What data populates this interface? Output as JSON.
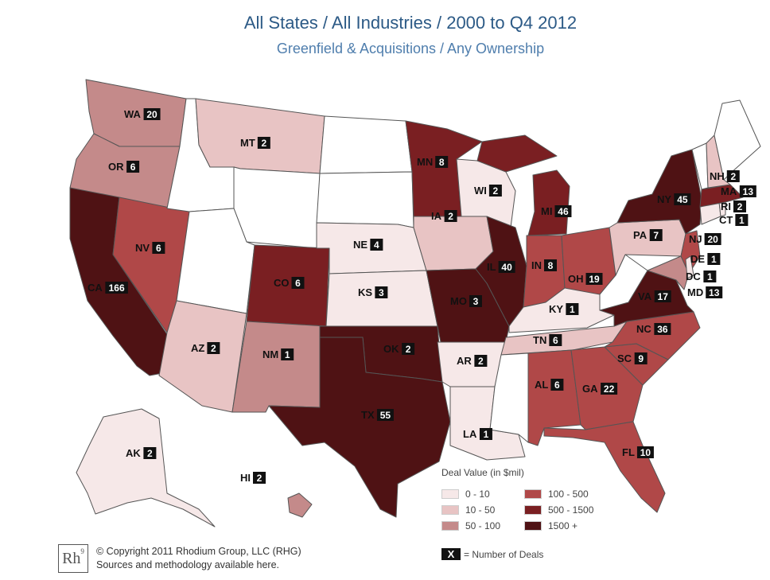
{
  "header": {
    "title": "All States / All Industries / 2000 to Q4 2012",
    "subtitle": "Greenfield & Acquisitions / Any Ownership"
  },
  "colors": {
    "none": "#ffffff",
    "0-10": "#f6e8e8",
    "10-50": "#e8c4c4",
    "50-100": "#c48a8a",
    "100-500": "#b04848",
    "500-1500": "#7a1f22",
    "1500+": "#4f1214"
  },
  "legend": {
    "title": "Deal Value (in $mil)",
    "items": [
      {
        "label": "0 - 10",
        "color": "#f6e8e8"
      },
      {
        "label": "10 - 50",
        "color": "#e8c4c4"
      },
      {
        "label": "50 - 100",
        "color": "#c48a8a"
      },
      {
        "label": "100 - 500",
        "color": "#b04848"
      },
      {
        "label": "500 - 1500",
        "color": "#7a1f22"
      },
      {
        "label": "1500 +",
        "color": "#4f1214"
      }
    ],
    "deals_key_symbol": "X",
    "deals_key_label": "= Number of Deals"
  },
  "states": {
    "WA": {
      "deals": 20,
      "bin": "50-100"
    },
    "OR": {
      "deals": 6,
      "bin": "50-100"
    },
    "CA": {
      "deals": 166,
      "bin": "1500+"
    },
    "NV": {
      "deals": 6,
      "bin": "100-500"
    },
    "ID": {
      "bin": "none"
    },
    "MT": {
      "deals": 2,
      "bin": "10-50"
    },
    "WY": {
      "bin": "none"
    },
    "UT": {
      "bin": "none"
    },
    "AZ": {
      "deals": 2,
      "bin": "10-50"
    },
    "CO": {
      "deals": 6,
      "bin": "500-1500"
    },
    "NM": {
      "deals": 1,
      "bin": "50-100"
    },
    "ND": {
      "bin": "none"
    },
    "SD": {
      "bin": "none"
    },
    "NE": {
      "deals": 4,
      "bin": "0-10"
    },
    "KS": {
      "deals": 3,
      "bin": "0-10"
    },
    "OK": {
      "deals": 2,
      "bin": "1500+"
    },
    "TX": {
      "deals": 55,
      "bin": "1500+"
    },
    "MN": {
      "deals": 8,
      "bin": "500-1500"
    },
    "IA": {
      "deals": 2,
      "bin": "10-50"
    },
    "MO": {
      "deals": 3,
      "bin": "1500+"
    },
    "AR": {
      "deals": 2,
      "bin": "0-10"
    },
    "LA": {
      "deals": 1,
      "bin": "0-10"
    },
    "WI": {
      "deals": 2,
      "bin": "0-10"
    },
    "IL": {
      "deals": 40,
      "bin": "1500+"
    },
    "MI": {
      "deals": 46,
      "bin": "500-1500"
    },
    "IN": {
      "deals": 8,
      "bin": "100-500"
    },
    "OH": {
      "deals": 19,
      "bin": "100-500"
    },
    "KY": {
      "deals": 1,
      "bin": "0-10"
    },
    "TN": {
      "deals": 6,
      "bin": "10-50"
    },
    "MS": {
      "bin": "none"
    },
    "AL": {
      "deals": 6,
      "bin": "100-500"
    },
    "GA": {
      "deals": 22,
      "bin": "100-500"
    },
    "FL": {
      "deals": 10,
      "bin": "100-500"
    },
    "SC": {
      "deals": 9,
      "bin": "100-500"
    },
    "NC": {
      "deals": 36,
      "bin": "100-500"
    },
    "VA": {
      "deals": 17,
      "bin": "1500+"
    },
    "WV": {
      "bin": "none"
    },
    "PA": {
      "deals": 7,
      "bin": "10-50"
    },
    "NY": {
      "deals": 45,
      "bin": "1500+"
    },
    "NJ": {
      "deals": 20,
      "bin": "100-500"
    },
    "DE": {
      "deals": 1,
      "bin": "0-10"
    },
    "DC": {
      "deals": 1,
      "bin": "0-10"
    },
    "MD": {
      "deals": 13,
      "bin": "50-100"
    },
    "CT": {
      "deals": 1,
      "bin": "0-10"
    },
    "RI": {
      "deals": 2,
      "bin": "0-10"
    },
    "MA": {
      "deals": 13,
      "bin": "500-1500"
    },
    "NH": {
      "deals": 2,
      "bin": "10-50"
    },
    "VT": {
      "bin": "none"
    },
    "ME": {
      "bin": "none"
    },
    "AK": {
      "deals": 2,
      "bin": "0-10"
    },
    "HI": {
      "deals": 2,
      "bin": "50-100"
    }
  },
  "footer": {
    "logo": "Rh",
    "logo_sup": "9",
    "copyright": "© Copyright 2011 Rhodium Group, LLC (RHG)",
    "sources": "Sources and methodology available here."
  }
}
